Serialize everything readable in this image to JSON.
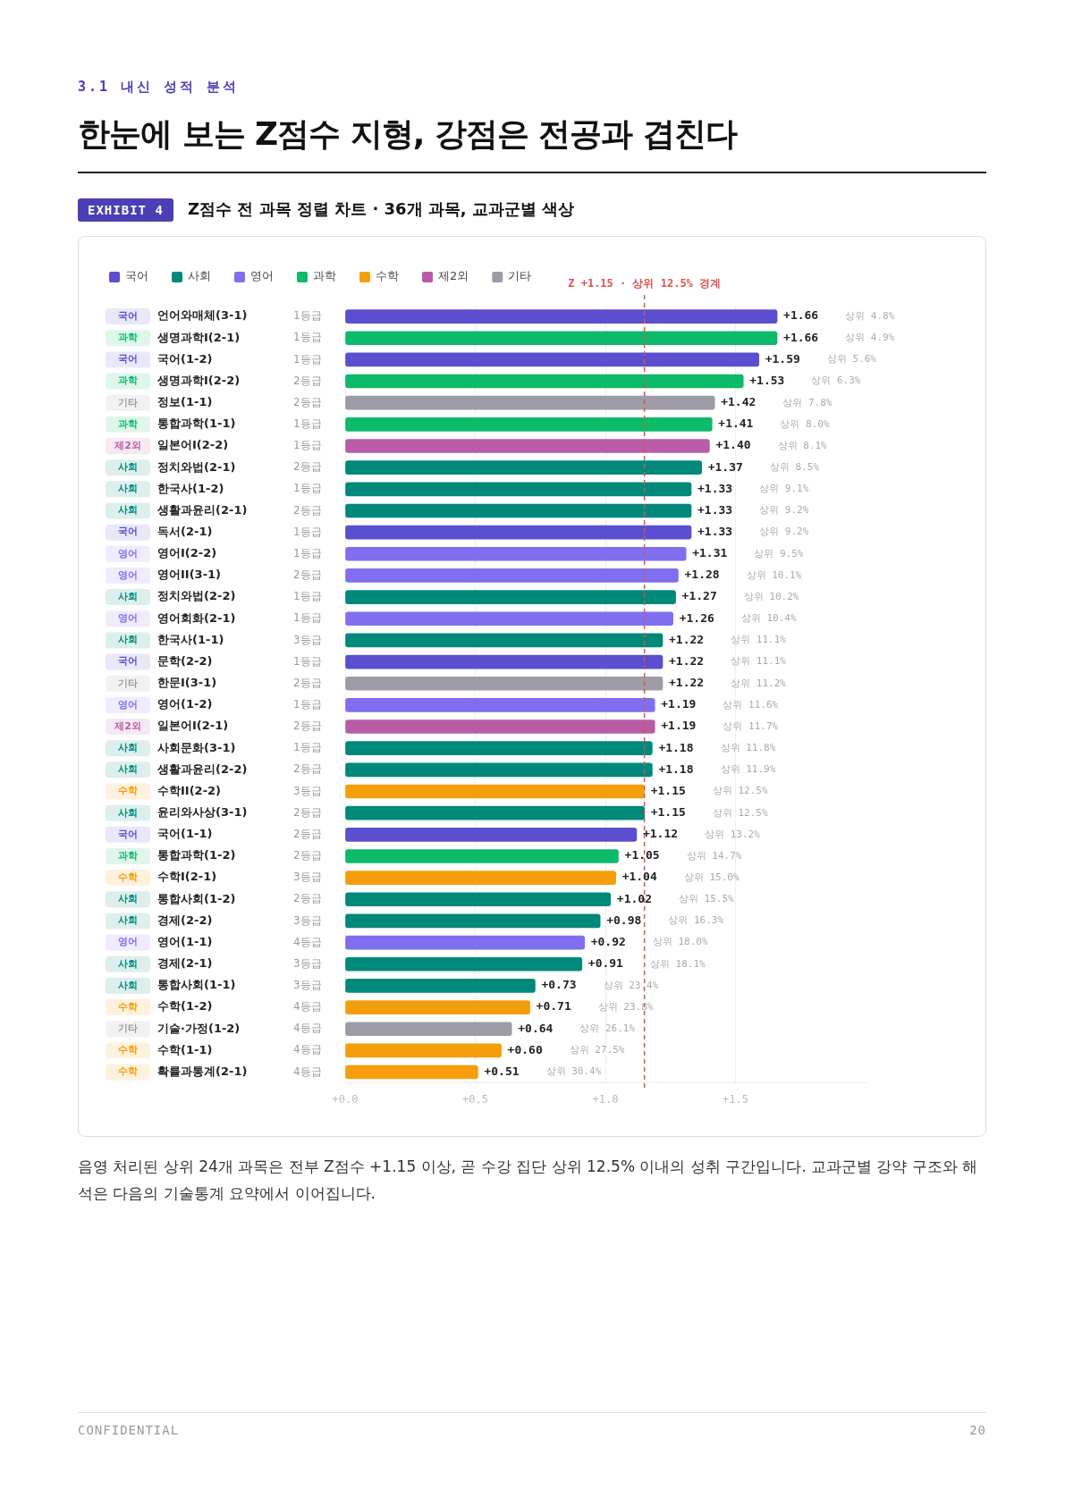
{
  "chart_data": {
    "type": "bar",
    "orientation": "horizontal",
    "stacked": true,
    "title": "한눈에 보는 Z점수 지형, 강점은 전공과 겹친다",
    "subtitle": "Z점수 전 과목 정렬 차트 · 36개 과목, 교과군별 색상",
    "categories": [
      "언어와매체(3-1)",
      "생명과학I(2-1)",
      "국어(1-2)",
      "생명과학I(2-2)",
      "정보(1-1)",
      "통합과학(1-1)",
      "일본어I(2-2)",
      "정치와법(2-1)",
      "한국사(1-2)",
      "생활과윤리(2-1)",
      "독서(2-1)",
      "영어I(2-2)",
      "영어II(3-1)",
      "정치와법(2-2)",
      "영어회화(2-1)",
      "한국사(1-1)",
      "문학(2-2)",
      "한문I(3-1)",
      "영어(1-2)",
      "일본어I(2-1)",
      "사회문화(3-1)",
      "생활과윤리(2-2)",
      "수학II(2-2)",
      "윤리와사상(3-1)",
      "국어(1-1)",
      "통합과학(1-2)",
      "수학I(2-1)",
      "통합사회(1-2)",
      "경제(2-2)",
      "영어(1-1)",
      "경제(2-1)",
      "통합사회(1-1)",
      "수학(1-2)",
      "기술·가정(1-2)",
      "수학(1-1)",
      "확률과통계(2-1)"
    ],
    "series": [
      {
        "name": "국어",
        "color": "#5b4fcf",
        "values": [
          1.66,
          null,
          1.59,
          null,
          null,
          null,
          null,
          null,
          null,
          null,
          1.33,
          null,
          null,
          null,
          null,
          null,
          1.22,
          null,
          null,
          null,
          null,
          null,
          null,
          null,
          1.12,
          null,
          null,
          null,
          null,
          null,
          null,
          null,
          null,
          null,
          null,
          null
        ],
        "value_labels": [
          "+1.66",
          null,
          "+1.59",
          null,
          null,
          null,
          null,
          null,
          null,
          null,
          "+1.33",
          null,
          null,
          null,
          null,
          null,
          "+1.22",
          null,
          null,
          null,
          null,
          null,
          null,
          null,
          "+1.12",
          null,
          null,
          null,
          null,
          null,
          null,
          null,
          null,
          null,
          null,
          null
        ]
      },
      {
        "name": "사회",
        "color": "#00897b",
        "values": [
          null,
          null,
          null,
          null,
          null,
          null,
          null,
          1.37,
          1.33,
          1.33,
          null,
          null,
          null,
          1.27,
          null,
          1.22,
          null,
          null,
          null,
          null,
          1.18,
          1.18,
          null,
          1.15,
          null,
          null,
          null,
          1.02,
          0.98,
          null,
          0.91,
          0.73,
          null,
          null,
          null,
          null
        ],
        "value_labels": [
          null,
          null,
          null,
          null,
          null,
          null,
          null,
          "+1.37",
          "+1.33",
          "+1.33",
          null,
          null,
          null,
          "+1.27",
          null,
          "+1.22",
          null,
          null,
          null,
          null,
          "+1.18",
          "+1.18",
          null,
          "+1.15",
          null,
          null,
          null,
          "+1.02",
          "+0.98",
          null,
          "+0.91",
          "+0.73",
          null,
          null,
          null,
          null
        ]
      },
      {
        "name": "영어",
        "color": "#7f6ff0",
        "values": [
          null,
          null,
          null,
          null,
          null,
          null,
          null,
          null,
          null,
          null,
          null,
          1.31,
          1.28,
          null,
          1.26,
          null,
          null,
          null,
          1.19,
          null,
          null,
          null,
          null,
          null,
          null,
          null,
          null,
          null,
          null,
          0.92,
          null,
          null,
          null,
          null,
          null,
          null
        ],
        "value_labels": [
          null,
          null,
          null,
          null,
          null,
          null,
          null,
          null,
          null,
          null,
          null,
          "+1.31",
          "+1.28",
          null,
          "+1.26",
          null,
          null,
          null,
          "+1.19",
          null,
          null,
          null,
          null,
          null,
          null,
          null,
          null,
          null,
          null,
          "+0.92",
          null,
          null,
          null,
          null,
          null,
          null
        ]
      },
      {
        "name": "과학",
        "color": "#0dba6a",
        "values": [
          null,
          1.66,
          null,
          1.53,
          null,
          1.41,
          null,
          null,
          null,
          null,
          null,
          null,
          null,
          null,
          null,
          null,
          null,
          null,
          null,
          null,
          null,
          null,
          null,
          null,
          null,
          1.05,
          null,
          null,
          null,
          null,
          null,
          null,
          null,
          null,
          null,
          null
        ],
        "value_labels": [
          null,
          "+1.66",
          null,
          "+1.53",
          null,
          "+1.41",
          null,
          null,
          null,
          null,
          null,
          null,
          null,
          null,
          null,
          null,
          null,
          null,
          null,
          null,
          null,
          null,
          null,
          null,
          null,
          "+1.05",
          null,
          null,
          null,
          null,
          null,
          null,
          null,
          null,
          null,
          null
        ]
      },
      {
        "name": "수학",
        "color": "#f59e0b",
        "values": [
          null,
          null,
          null,
          null,
          null,
          null,
          null,
          null,
          null,
          null,
          null,
          null,
          null,
          null,
          null,
          null,
          null,
          null,
          null,
          null,
          null,
          null,
          1.15,
          null,
          null,
          null,
          1.04,
          null,
          null,
          null,
          null,
          null,
          0.71,
          null,
          0.6,
          0.51
        ],
        "value_labels": [
          null,
          null,
          null,
          null,
          null,
          null,
          null,
          null,
          null,
          null,
          null,
          null,
          null,
          null,
          null,
          null,
          null,
          null,
          null,
          null,
          null,
          null,
          "+1.15",
          null,
          null,
          null,
          "+1.04",
          null,
          null,
          null,
          null,
          null,
          "+0.71",
          null,
          "+0.60",
          "+0.51"
        ]
      },
      {
        "name": "제2외",
        "color": "#b85ca8",
        "values": [
          null,
          null,
          null,
          null,
          null,
          null,
          1.4,
          null,
          null,
          null,
          null,
          null,
          null,
          null,
          null,
          null,
          null,
          null,
          null,
          1.19,
          null,
          null,
          null,
          null,
          null,
          null,
          null,
          null,
          null,
          null,
          null,
          null,
          null,
          null,
          null,
          null
        ],
        "value_labels": [
          null,
          null,
          null,
          null,
          null,
          null,
          "+1.40",
          null,
          null,
          null,
          null,
          null,
          null,
          null,
          null,
          null,
          null,
          null,
          null,
          "+1.19",
          null,
          null,
          null,
          null,
          null,
          null,
          null,
          null,
          null,
          null,
          null,
          null,
          null,
          null,
          null,
          null
        ]
      },
      {
        "name": "기타",
        "color": "#9c9ba6",
        "values": [
          null,
          null,
          null,
          null,
          1.42,
          null,
          null,
          null,
          null,
          null,
          null,
          null,
          null,
          null,
          null,
          null,
          null,
          1.22,
          null,
          null,
          null,
          null,
          null,
          null,
          null,
          null,
          null,
          null,
          null,
          null,
          null,
          null,
          null,
          0.64,
          null,
          null
        ],
        "value_labels": [
          null,
          null,
          null,
          null,
          "+1.42",
          null,
          null,
          null,
          null,
          null,
          null,
          null,
          null,
          null,
          null,
          null,
          null,
          "+1.22",
          null,
          null,
          null,
          null,
          null,
          null,
          null,
          null,
          null,
          null,
          null,
          null,
          null,
          null,
          null,
          "+0.64",
          null,
          null
        ]
      }
    ],
    "xlim": [
      0,
      2
    ],
    "xticks": [
      {
        "value": 0,
        "label": "+0.0"
      },
      {
        "value": 0.5,
        "label": "+0.5"
      },
      {
        "value": 1,
        "label": "+1.0"
      },
      {
        "value": 1.5,
        "label": "+1.5"
      }
    ],
    "grid": "x",
    "legend": "top left",
    "ref_lines": [
      {
        "axis": "x",
        "value": 1.15,
        "label": "Z +1.15 · 상위 12.5% 경계",
        "color": "#d9534f",
        "line_style": "dashed"
      }
    ],
    "annotations": [
      "3.1 내신 성적 분석",
      "EXHIBIT 4",
      "음영 처리된 상위 24개 과목은 전부 Z점수 +1.15 이상, 곧 수강 집단 상위 12.5% 이내의 성취 구간입니다. 교과군별 강약 구조와 해석은 다음의 기술통계 요약에서 이어집니다.",
      "CONFIDENTIAL",
      "20",
      "1등급",
      "1등급",
      "1등급",
      "2등급",
      "2등급",
      "1등급",
      "1등급",
      "2등급",
      "1등급",
      "2등급",
      "1등급",
      "1등급",
      "2등급",
      "1등급",
      "1등급",
      "3등급",
      "1등급",
      "2등급",
      "1등급",
      "2등급",
      "1등급",
      "2등급",
      "3등급",
      "2등급",
      "2등급",
      "2등급",
      "3등급",
      "2등급",
      "3등급",
      "4등급",
      "3등급",
      "3등급",
      "4등급",
      "4등급",
      "4등급",
      "4등급",
      "상위 4.8%",
      "상위 4.9%",
      "상위 5.6%",
      "상위 6.3%",
      "상위 7.8%",
      "상위 8.0%",
      "상위 8.1%",
      "상위 8.5%",
      "상위 9.1%",
      "상위 9.2%",
      "상위 9.2%",
      "상위 9.5%",
      "상위 10.1%",
      "상위 10.2%",
      "상위 10.4%",
      "상위 11.1%",
      "상위 11.1%",
      "상위 11.2%",
      "상위 11.6%",
      "상위 11.7%",
      "상위 11.8%",
      "상위 11.9%",
      "상위 12.5%",
      "상위 12.5%",
      "상위 13.2%",
      "상위 14.7%",
      "상위 15.0%",
      "상위 15.5%",
      "상위 16.3%",
      "상위 18.0%",
      "상위 18.1%",
      "상위 23.4%",
      "상위 23.8%",
      "상위 26.1%",
      "상위 27.5%",
      "상위 30.4%"
    ]
  }
}
